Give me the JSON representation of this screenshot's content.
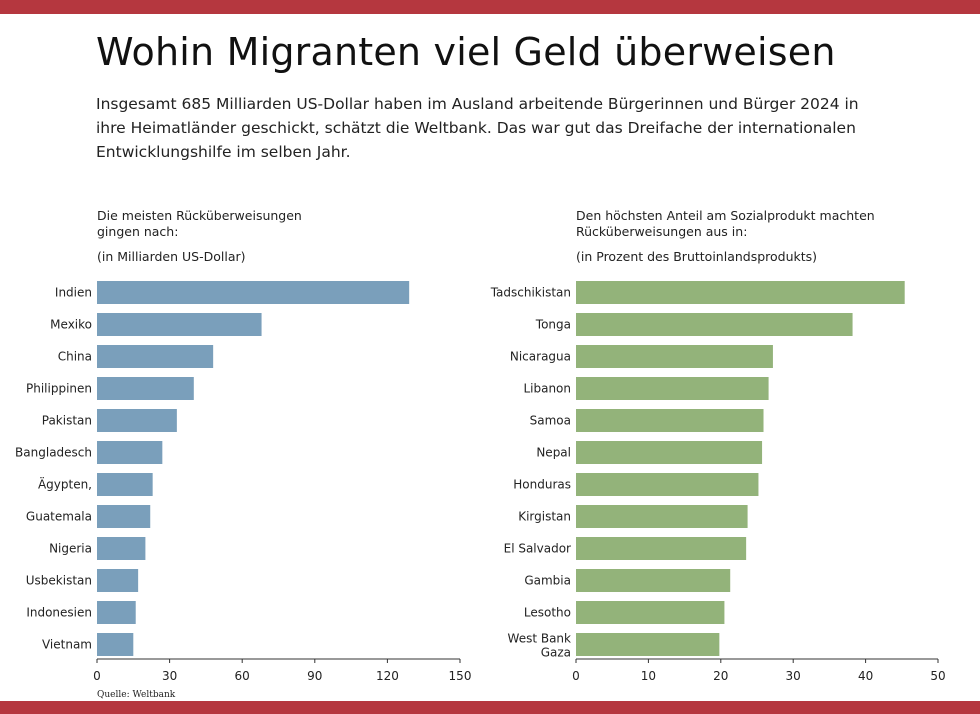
{
  "header": {
    "title": "Wohin Migranten viel Geld überweisen",
    "subtitle": "Insgesamt 685 Milliarden US-Dollar haben im Ausland arbeitende Bürgerinnen und Bürger 2024 in ihre Heimatländer geschickt, schätzt die Weltbank. Das war gut das Dreifache der internationalen Entwicklungshilfe im selben Jahr."
  },
  "source": "Quelle: Weltbank",
  "colors": {
    "band": "#b5373f",
    "left_bars": "#7a9fbb",
    "right_bars": "#93b37a"
  },
  "chart_data": [
    {
      "type": "bar",
      "orientation": "horizontal",
      "title_line1": "Die meisten Rücküberweisungen",
      "title_line2": "gingen nach:",
      "unit": "(in Milliarden US-Dollar)",
      "categories": [
        "Indien",
        "Mexiko",
        "China",
        "Philippinen",
        "Pakistan",
        "Bangladesch",
        "Ägypten,",
        "Guatemala",
        "Nigeria",
        "Usbekistan",
        "Indonesien",
        "Vietnam"
      ],
      "values": [
        129,
        68,
        48,
        40,
        33,
        27,
        23,
        22,
        20,
        17,
        16,
        15
      ],
      "xlim": [
        0,
        150
      ],
      "xticks": [
        0,
        30,
        60,
        90,
        120,
        150
      ]
    },
    {
      "type": "bar",
      "orientation": "horizontal",
      "title_line1": "Den höchsten Anteil am Sozialprodukt machten",
      "title_line2": "Rücküberweisungen aus in:",
      "unit": "(in Prozent des Bruttoinlandsprodukts)",
      "categories": [
        "Tadschikistan",
        "Tonga",
        "Nicaragua",
        "Libanon",
        "Samoa",
        "Nepal",
        "Honduras",
        "Kirgistan",
        "El Salvador",
        "Gambia",
        "Lesotho",
        "West Bank Gaza"
      ],
      "values": [
        45.4,
        38.2,
        27.2,
        26.6,
        25.9,
        25.7,
        25.2,
        23.7,
        23.5,
        21.3,
        20.5,
        19.8
      ],
      "xlim": [
        0,
        50
      ],
      "xticks": [
        0,
        10,
        20,
        30,
        40,
        50
      ]
    }
  ]
}
